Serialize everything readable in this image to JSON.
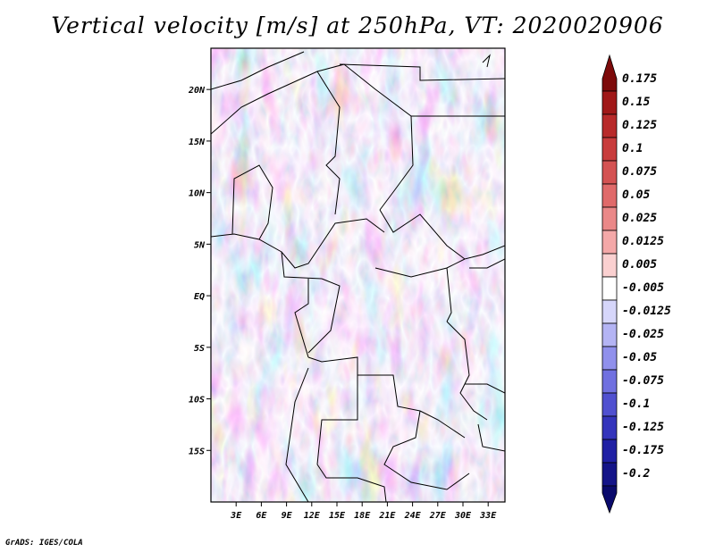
{
  "title": "Vertical velocity [m/s] at 250hPa, VT: 2020020906",
  "credit": "GrADS: IGES/COLA",
  "map": {
    "lon_range": [
      0,
      35
    ],
    "lat_range": [
      -20,
      24
    ],
    "lat_ticks": [
      {
        "value": 20,
        "label": "20N"
      },
      {
        "value": 15,
        "label": "15N"
      },
      {
        "value": 10,
        "label": "10N"
      },
      {
        "value": 5,
        "label": "5N"
      },
      {
        "value": 0,
        "label": "EQ"
      },
      {
        "value": -5,
        "label": "5S"
      },
      {
        "value": -10,
        "label": "10S"
      },
      {
        "value": -15,
        "label": "15S"
      }
    ],
    "lon_ticks": [
      {
        "value": 3,
        "label": "3E"
      },
      {
        "value": 6,
        "label": "6E"
      },
      {
        "value": 9,
        "label": "9E"
      },
      {
        "value": 12,
        "label": "12E"
      },
      {
        "value": 15,
        "label": "15E"
      },
      {
        "value": 18,
        "label": "18E"
      },
      {
        "value": 21,
        "label": "21E"
      },
      {
        "value": 24,
        "label": "24E"
      },
      {
        "value": 27,
        "label": "27E"
      },
      {
        "value": 30,
        "label": "30E"
      },
      {
        "value": 33,
        "label": "33E"
      }
    ]
  },
  "colorbar": {
    "levels": [
      "0.175",
      "0.15",
      "0.125",
      "0.1",
      "0.075",
      "0.05",
      "0.025",
      "0.0125",
      "0.005",
      "-0.005",
      "-0.0125",
      "-0.025",
      "-0.05",
      "-0.075",
      "-0.1",
      "-0.125",
      "-0.175",
      "-0.2"
    ],
    "colors": [
      "#7d0a0a",
      "#a01818",
      "#b82a2a",
      "#c83c3c",
      "#d45252",
      "#e06a6a",
      "#ea8888",
      "#f4a8a8",
      "#fad0d0",
      "#ffffff",
      "#d6d6fa",
      "#b4b4f4",
      "#9090ec",
      "#7070e0",
      "#5050d0",
      "#3434bc",
      "#2020a4",
      "#141488",
      "#0a0a6c"
    ]
  }
}
